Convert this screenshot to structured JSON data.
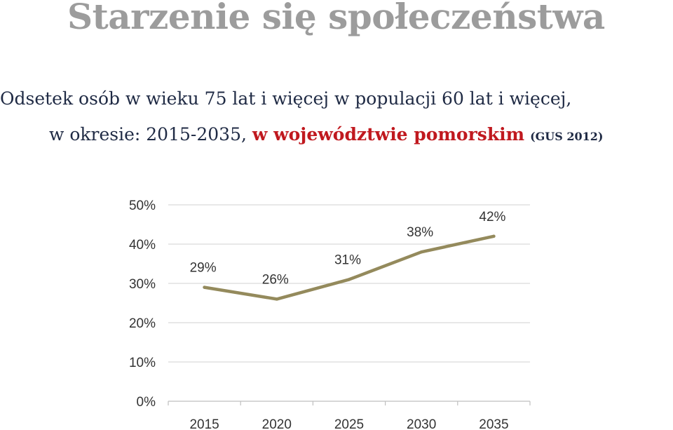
{
  "page": {
    "title": "Starzenie się społeczeństwa",
    "subtitle_line1": "Odsetek osób w wieku 75 lat i więcej w populacji 60 lat i więcej,",
    "subtitle_line2_prefix": "w okresie: 2015-2035, ",
    "subtitle_line2_region": "w województwie pomorskim",
    "subtitle_line2_source": "(GUS 2012)"
  },
  "colors": {
    "title": "#9c9c9c",
    "subtitle": "#1f2a44",
    "highlight": "#c0191f",
    "line": "#948a5c",
    "grid": "#d9d9d9"
  },
  "chart_data": {
    "type": "line",
    "title": "",
    "xlabel": "",
    "ylabel": "",
    "categories": [
      "2015",
      "2020",
      "2025",
      "2030",
      "2035"
    ],
    "series": [
      {
        "values": [
          29,
          26,
          31,
          38,
          42
        ],
        "labels": [
          "29%",
          "26%",
          "31%",
          "38%",
          "42%"
        ]
      }
    ],
    "ylim": [
      0,
      50
    ],
    "yticks": [
      0,
      10,
      20,
      30,
      40,
      50
    ],
    "ytick_labels": [
      "0%",
      "10%",
      "20%",
      "30%",
      "40%",
      "50%"
    ],
    "grid": true,
    "legend": "none"
  }
}
